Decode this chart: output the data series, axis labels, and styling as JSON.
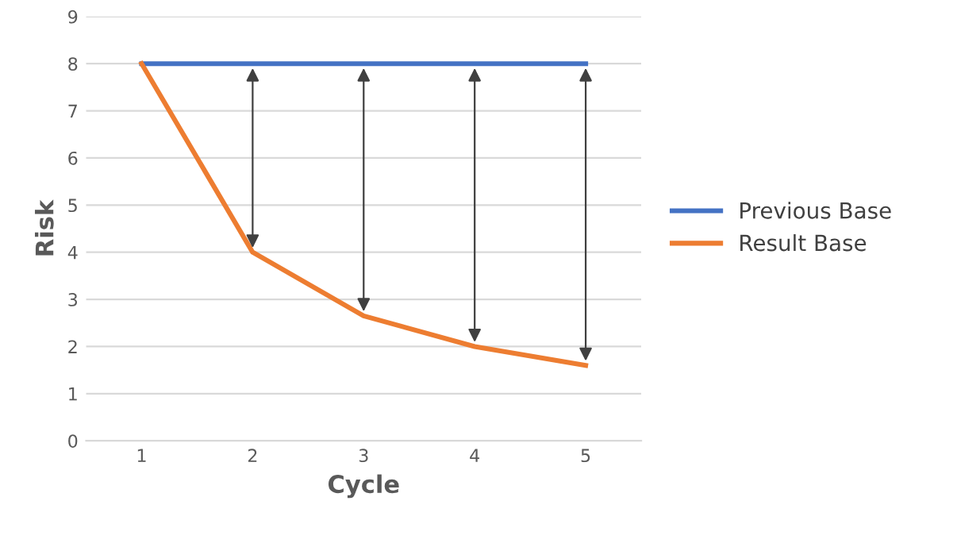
{
  "chart_data": {
    "type": "line",
    "xlabel": "Cycle",
    "ylabel": "Risk",
    "categories": [
      "1",
      "2",
      "3",
      "4",
      "5"
    ],
    "series": [
      {
        "name": "Previous Base",
        "color": "#4472c4",
        "values": [
          8,
          8,
          8,
          8,
          8
        ]
      },
      {
        "name": "Result Base",
        "color": "#ed7d31",
        "values": [
          8,
          4,
          2.65,
          2,
          1.6
        ]
      }
    ],
    "ylim": [
      0,
      9
    ],
    "yticks": [
      0,
      1,
      2,
      3,
      4,
      5,
      6,
      7,
      8,
      9
    ],
    "grid": "y",
    "legend": "right",
    "marker": "none",
    "line_style": "solid"
  }
}
